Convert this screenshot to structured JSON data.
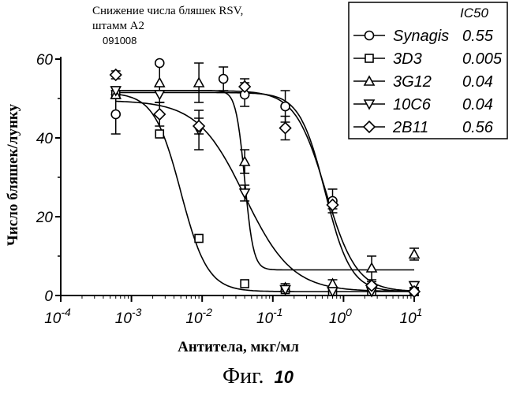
{
  "chart_data": {
    "type": "scatter",
    "title": "Снижение числа бляшек RSV,",
    "subtitle": "штамм А2",
    "code": "091008",
    "xlabel": "Антитела, мкг/мл",
    "ylabel": "Число бляшек/лунку",
    "x_scale": "log",
    "xlim": [
      0.0001,
      10
    ],
    "ylim": [
      0,
      60
    ],
    "x_ticks": [
      {
        "base": "10",
        "exp": "-4"
      },
      {
        "base": "10",
        "exp": "-3"
      },
      {
        "base": "10",
        "exp": "-2"
      },
      {
        "base": "10",
        "exp": "-1"
      },
      {
        "base": "10",
        "exp": "0"
      },
      {
        "base": "10",
        "exp": "1"
      }
    ],
    "y_ticks": [
      "0",
      "20",
      "40",
      "60"
    ],
    "legend_position": "top-right",
    "legend_header": "IC50",
    "series": [
      {
        "name": "Synagis",
        "ic50": "0.55",
        "marker": "circle",
        "x": [
          0.0006,
          0.0025,
          0.02,
          0.04,
          0.15,
          0.7,
          2.5,
          10
        ],
        "y": [
          46,
          59,
          55,
          51,
          48,
          24,
          2,
          1
        ],
        "err": [
          5,
          0,
          3,
          3,
          4,
          3,
          1,
          1
        ],
        "fit": {
          "top": 51.5,
          "bottom": 1,
          "ic50": 0.55,
          "hill": 2.4
        }
      },
      {
        "name": "3D3",
        "ic50": "0.005",
        "marker": "square",
        "x": [
          0.0006,
          0.0025,
          0.009,
          0.04,
          0.15,
          0.7,
          2.5,
          10
        ],
        "y": [
          51,
          41,
          14.5,
          3,
          1.5,
          1,
          1,
          1
        ],
        "err": [
          1,
          0,
          0,
          0,
          0,
          0,
          0,
          0
        ],
        "fit": {
          "top": 51.5,
          "bottom": 1,
          "ic50": 0.005,
          "hill": 2.3
        }
      },
      {
        "name": "3G12",
        "ic50": "0.04",
        "marker": "triangle-up",
        "x": [
          0.0006,
          0.0025,
          0.009,
          0.04,
          0.15,
          0.7,
          2.5,
          10
        ],
        "y": [
          51,
          54,
          54,
          34,
          2,
          3,
          7,
          10.5
        ],
        "err": [
          1,
          5,
          5,
          3,
          1,
          1,
          3,
          1.5
        ],
        "fit": {
          "top": 52,
          "bottom": 6.5,
          "ic50": 0.04,
          "hill": 7
        }
      },
      {
        "name": "10C6",
        "ic50": "0.04",
        "marker": "triangle-down",
        "x": [
          0.0006,
          0.0025,
          0.009,
          0.04,
          0.15,
          0.7,
          2.5,
          10
        ],
        "y": [
          52,
          51,
          42,
          26,
          1.5,
          1,
          1,
          2.5
        ],
        "err": [
          1,
          2,
          5,
          2,
          0,
          0,
          0,
          1
        ],
        "fit": {
          "top": 49.5,
          "bottom": 1,
          "ic50": 0.04,
          "hill": 1.3
        }
      },
      {
        "name": "2B11",
        "ic50": "0.56",
        "marker": "diamond",
        "x": [
          0.0006,
          0.0025,
          0.009,
          0.04,
          0.15,
          0.7,
          2.5,
          10
        ],
        "y": [
          56,
          46,
          43,
          53,
          42.5,
          23,
          2.5,
          1
        ],
        "err": [
          1,
          3,
          2,
          2,
          3,
          1,
          1,
          0
        ],
        "fit": {
          "top": 52,
          "bottom": 1,
          "ic50": 0.56,
          "hill": 2.0
        }
      }
    ]
  },
  "caption": {
    "prefix": "Фиг.",
    "number": "10"
  }
}
